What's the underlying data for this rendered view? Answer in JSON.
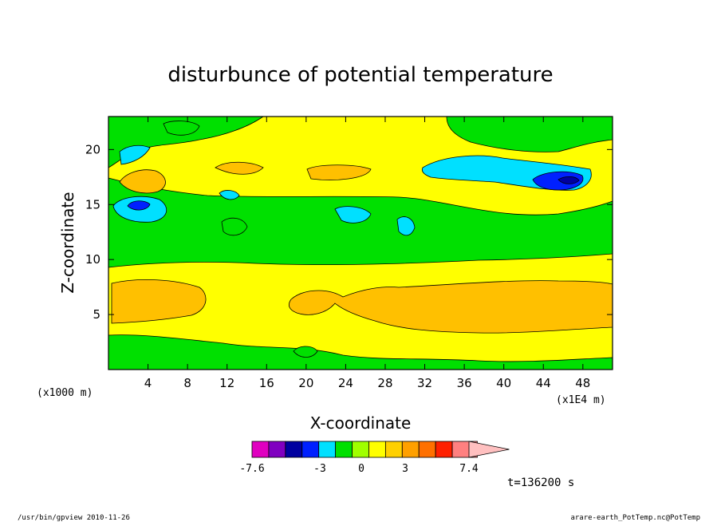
{
  "chart_data": {
    "type": "heatmap",
    "title": "disturbunce of potential temperature",
    "xlabel": "X-coordinate",
    "ylabel": "Z-coordinate",
    "x_unit_label": "(x1E4 m)",
    "y_unit_label": "(x1000 m)",
    "xlim": [
      0,
      51
    ],
    "ylim": [
      0,
      23
    ],
    "x_ticks": [
      4,
      8,
      12,
      16,
      20,
      24,
      28,
      32,
      36,
      40,
      44,
      48
    ],
    "y_ticks": [
      5,
      10,
      15,
      20
    ],
    "colorbar": {
      "min_label": "-7.6",
      "labels": [
        "-3",
        "0",
        "3"
      ],
      "max_label": "7.4",
      "levels": [
        -7.6,
        -6,
        -5,
        -4,
        -3,
        -2,
        -1,
        0,
        1,
        2,
        3,
        4,
        5,
        7.4
      ],
      "colors": [
        "#e000c0",
        "#8000c0",
        "#0000a0",
        "#0020ff",
        "#00e0ff",
        "#00e000",
        "#a0ff00",
        "#ffff00",
        "#ffd000",
        "#ffa000",
        "#ff7000",
        "#ff2000",
        "#ff8080",
        "#ffc0c0"
      ]
    },
    "time_label": "t=136200 s",
    "bands": [
      {
        "z_min": 0,
        "z_max": 2.8,
        "class": "0..1",
        "color": "#ffff00"
      },
      {
        "z_min": 1.5,
        "z_max": 2.8,
        "class": "-1..0",
        "color": "#00e000"
      },
      {
        "z_min": 2.8,
        "z_max": 9.8,
        "class": "0..1",
        "color": "#ffff00"
      },
      {
        "z_min": 4.2,
        "z_max": 8.0,
        "class": "1..2",
        "color": "#ffd000"
      },
      {
        "z_min": 9.8,
        "z_max": 15.5,
        "class": "-1..0",
        "color": "#00e000"
      },
      {
        "z_min": 15.5,
        "z_max": 19.5,
        "class": "0..1",
        "color": "#ffff00"
      },
      {
        "z_min": 15.8,
        "z_max": 18.2,
        "class": "-2..-1",
        "color": "#00e0ff"
      },
      {
        "z_min": 16.5,
        "z_max": 17.5,
        "class": "-4..-3",
        "color": "#0020ff"
      },
      {
        "z_min": 16.5,
        "z_max": 17.6,
        "class": "1..2",
        "color": "#ffd000"
      }
    ]
  },
  "footer": {
    "left": "/usr/bin/gpview  2010-11-26",
    "right": "arare-earth_PotTemp.nc@PotTemp"
  }
}
